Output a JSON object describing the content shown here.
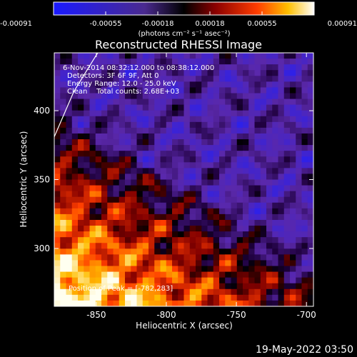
{
  "colorbar": {
    "ticks": [
      "-0.00091",
      "-0.00055",
      "-0.00018",
      "0.00018",
      "0.00055",
      "0.00091"
    ],
    "units": "(photons cm⁻² s⁻¹ asec⁻²)"
  },
  "chart_data": {
    "type": "heatmap",
    "title": "Reconstructed RHESSI Image",
    "xlabel": "Heliocentric X (arcsec)",
    "ylabel": "Heliocentric Y (arcsec)",
    "xlim": [
      -880,
      -695
    ],
    "ylim": [
      258,
      442
    ],
    "xticks": [
      -850,
      -800,
      -750,
      -700
    ],
    "yticks": [
      300,
      350,
      400
    ],
    "colorbar_range": [
      -0.00091,
      0.00091
    ],
    "colormap": "blue-black-red-yellow-white",
    "annotations": {
      "time_range": "6-Nov-2014 08:32:12.000 to 08:38:12.000",
      "detectors": "Detectors: 3F 6F 9F, Att 0",
      "energy": "Energy Range: 12.0 - 25.0 keV",
      "method": "Clean    Total counts: 2.68E+03",
      "peak": "Position of Peak = [-782,283]"
    },
    "limb": [
      [
        -880,
        381
      ],
      [
        -866,
        414
      ],
      [
        -849,
        442
      ]
    ]
  },
  "footer": {
    "timestamp": "19-May-2022 03:50"
  }
}
